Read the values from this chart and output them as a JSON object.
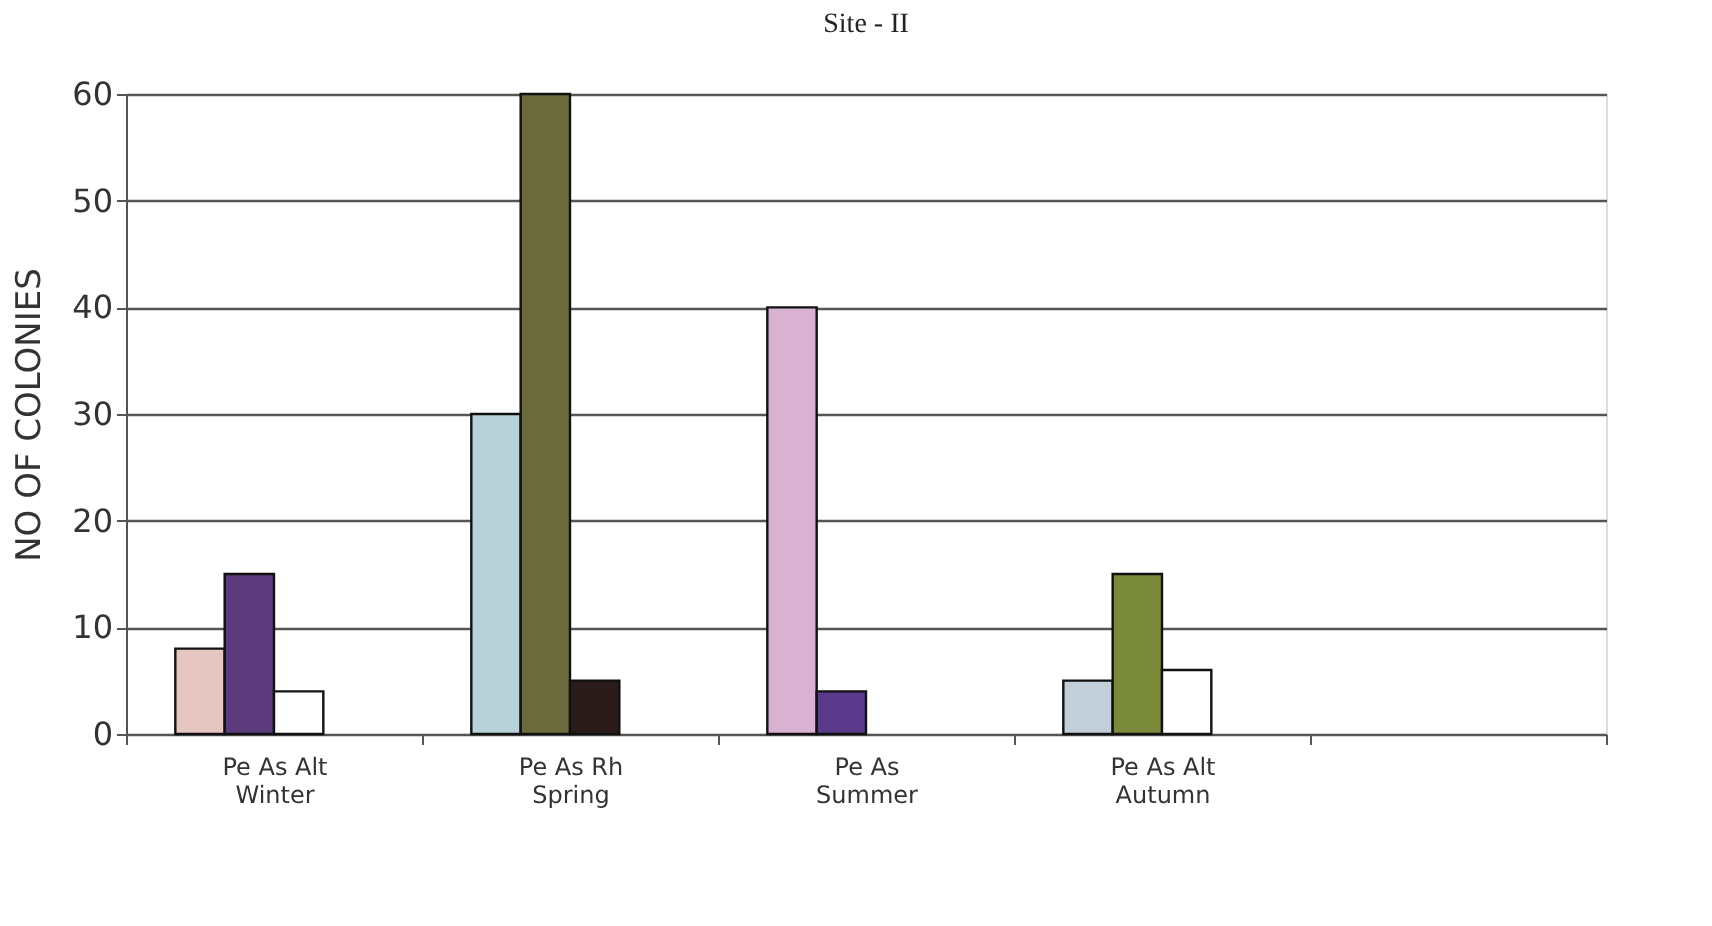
{
  "chart_data": {
    "type": "bar",
    "title": "Site - II",
    "ylabel": "NO OF COLONIES",
    "categories": [
      "Pe As Alt\nWinter",
      "Pe As Rh\nSpring",
      "Pe As\nSummer",
      "Pe As Alt\nAutumn",
      null
    ],
    "series": [
      {
        "values": [
          8,
          30,
          40,
          5,
          null
        ],
        "colors": [
          "#e6c6c0",
          "#b9d2da",
          "#d9b2d2",
          "#c2cfd9",
          "#ffffff"
        ]
      },
      {
        "values": [
          15,
          60,
          4,
          15,
          null
        ],
        "colors": [
          "#5b3b7b",
          "#6b6a3c",
          "#5a3a8a",
          "#7a8a3a",
          "#ffffff"
        ]
      },
      {
        "values": [
          4,
          5,
          null,
          6,
          null
        ],
        "colors": [
          "#ffffff",
          "#2a1a1a",
          "#ffffff",
          "#ffffff",
          "#ffffff"
        ]
      }
    ],
    "ylim": [
      0,
      60
    ],
    "yticks": [
      0,
      10,
      20,
      30,
      40,
      50,
      60
    ],
    "grid": "y"
  }
}
